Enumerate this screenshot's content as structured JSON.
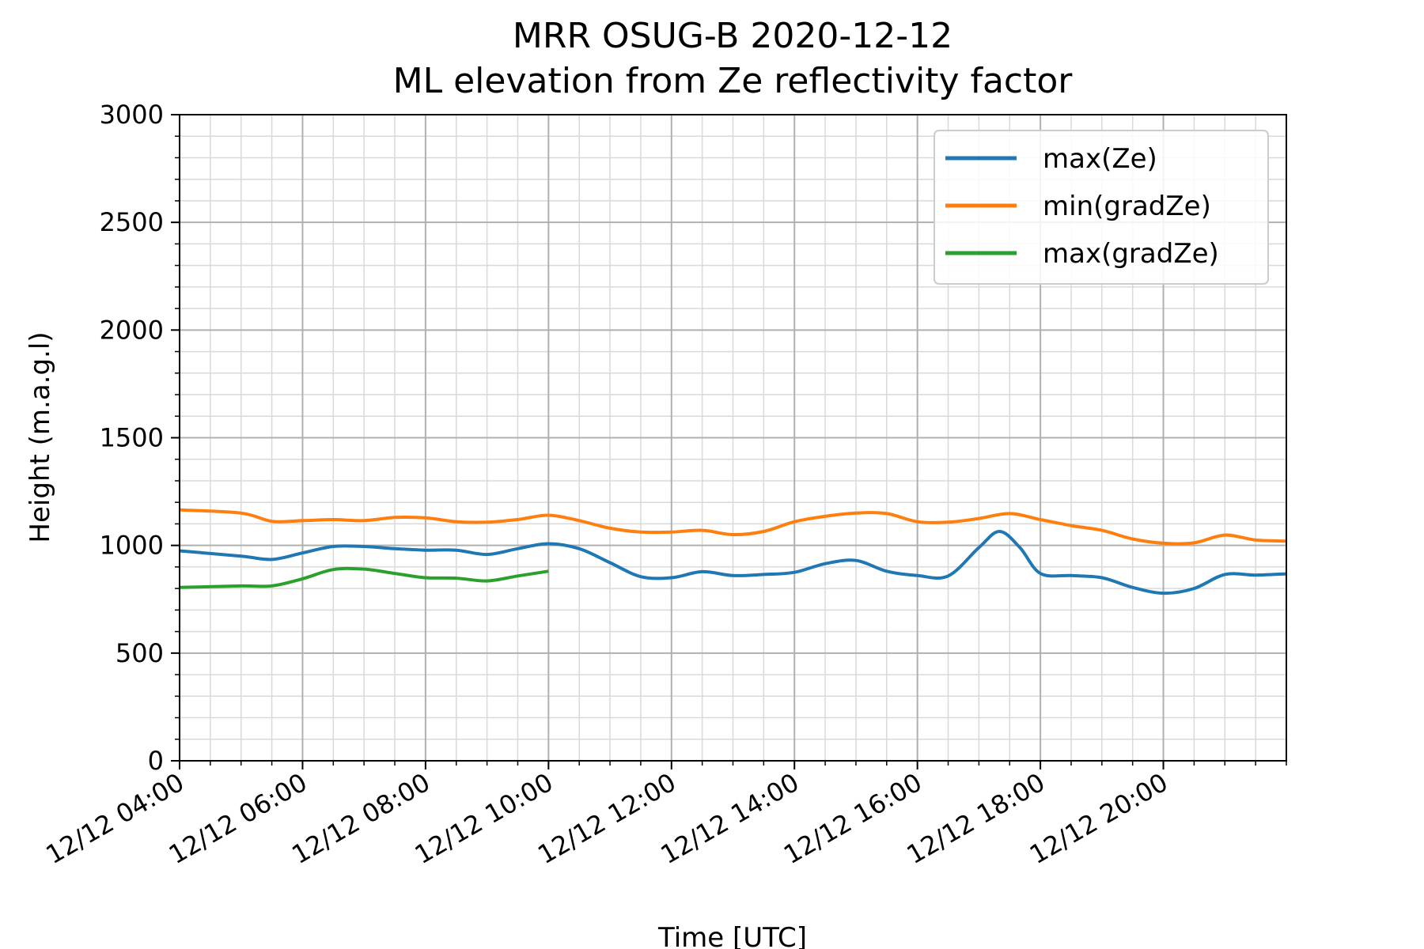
{
  "chart_data": {
    "type": "line",
    "title": "MRR OSUG-B 2020-12-12",
    "subtitle": "ML elevation from Ze reflectivity factor",
    "xlabel": "Time [UTC]",
    "ylabel": "Height (m.a.g.l)",
    "xlim": [
      "12/12 04:00",
      "12/12 22:00"
    ],
    "ylim": [
      0,
      3000
    ],
    "x_ticks": [
      "12/12 04:00",
      "12/12 06:00",
      "12/12 08:00",
      "12/12 10:00",
      "12/12 12:00",
      "12/12 14:00",
      "12/12 16:00",
      "12/12 18:00",
      "12/12 20:00"
    ],
    "y_ticks": [
      "0",
      "500",
      "1000",
      "1500",
      "2000",
      "2500",
      "3000"
    ],
    "grid": true,
    "legend_position": "top-right",
    "series": [
      {
        "name": "max(Ze)",
        "color": "#1f77b4",
        "x": [
          "12/12 04:00",
          "12/12 05:00",
          "12/12 05:30",
          "12/12 06:00",
          "12/12 06:30",
          "12/12 07:00",
          "12/12 07:30",
          "12/12 08:00",
          "12/12 08:30",
          "12/12 09:00",
          "12/12 09:30",
          "12/12 10:00",
          "12/12 10:30",
          "12/12 11:00",
          "12/12 11:30",
          "12/12 12:00",
          "12/12 12:30",
          "12/12 13:00",
          "12/12 13:30",
          "12/12 14:00",
          "12/12 14:30",
          "12/12 15:00",
          "12/12 15:30",
          "12/12 16:00",
          "12/12 16:30",
          "12/12 17:00",
          "12/12 17:20",
          "12/12 17:40",
          "12/12 18:00",
          "12/12 18:30",
          "12/12 19:00",
          "12/12 19:30",
          "12/12 20:00",
          "12/12 20:30",
          "12/12 21:00",
          "12/12 21:30",
          "12/12 22:00"
        ],
        "y": [
          975,
          950,
          935,
          965,
          995,
          995,
          985,
          978,
          978,
          958,
          985,
          1008,
          985,
          920,
          855,
          850,
          878,
          860,
          865,
          875,
          915,
          930,
          880,
          860,
          858,
          990,
          1065,
          990,
          870,
          860,
          850,
          805,
          778,
          800,
          865,
          862,
          868
        ]
      },
      {
        "name": "min(gradZe)",
        "color": "#ff7f0e",
        "x": [
          "12/12 04:00",
          "12/12 05:00",
          "12/12 05:30",
          "12/12 06:00",
          "12/12 06:30",
          "12/12 07:00",
          "12/12 07:30",
          "12/12 08:00",
          "12/12 08:30",
          "12/12 09:00",
          "12/12 09:30",
          "12/12 10:00",
          "12/12 10:30",
          "12/12 11:00",
          "12/12 11:30",
          "12/12 12:00",
          "12/12 12:30",
          "12/12 13:00",
          "12/12 13:30",
          "12/12 14:00",
          "12/12 14:30",
          "12/12 15:00",
          "12/12 15:30",
          "12/12 16:00",
          "12/12 16:30",
          "12/12 17:00",
          "12/12 17:30",
          "12/12 18:00",
          "12/12 18:30",
          "12/12 19:00",
          "12/12 19:30",
          "12/12 20:00",
          "12/12 20:30",
          "12/12 21:00",
          "12/12 21:30",
          "12/12 22:00"
        ],
        "y": [
          1165,
          1150,
          1112,
          1115,
          1120,
          1115,
          1130,
          1128,
          1110,
          1108,
          1120,
          1140,
          1115,
          1080,
          1062,
          1062,
          1070,
          1050,
          1065,
          1110,
          1135,
          1150,
          1148,
          1110,
          1108,
          1125,
          1148,
          1120,
          1092,
          1070,
          1030,
          1010,
          1012,
          1048,
          1025,
          1020
        ]
      },
      {
        "name": "max(gradZe)",
        "color": "#2ca02c",
        "x": [
          "12/12 04:00",
          "12/12 05:00",
          "12/12 05:30",
          "12/12 06:00",
          "12/12 06:30",
          "12/12 07:00",
          "12/12 07:30",
          "12/12 08:00",
          "12/12 08:30",
          "12/12 09:00",
          "12/12 09:30",
          "12/12 10:00"
        ],
        "y": [
          805,
          812,
          812,
          845,
          888,
          890,
          870,
          850,
          848,
          835,
          858,
          880
        ]
      }
    ]
  }
}
